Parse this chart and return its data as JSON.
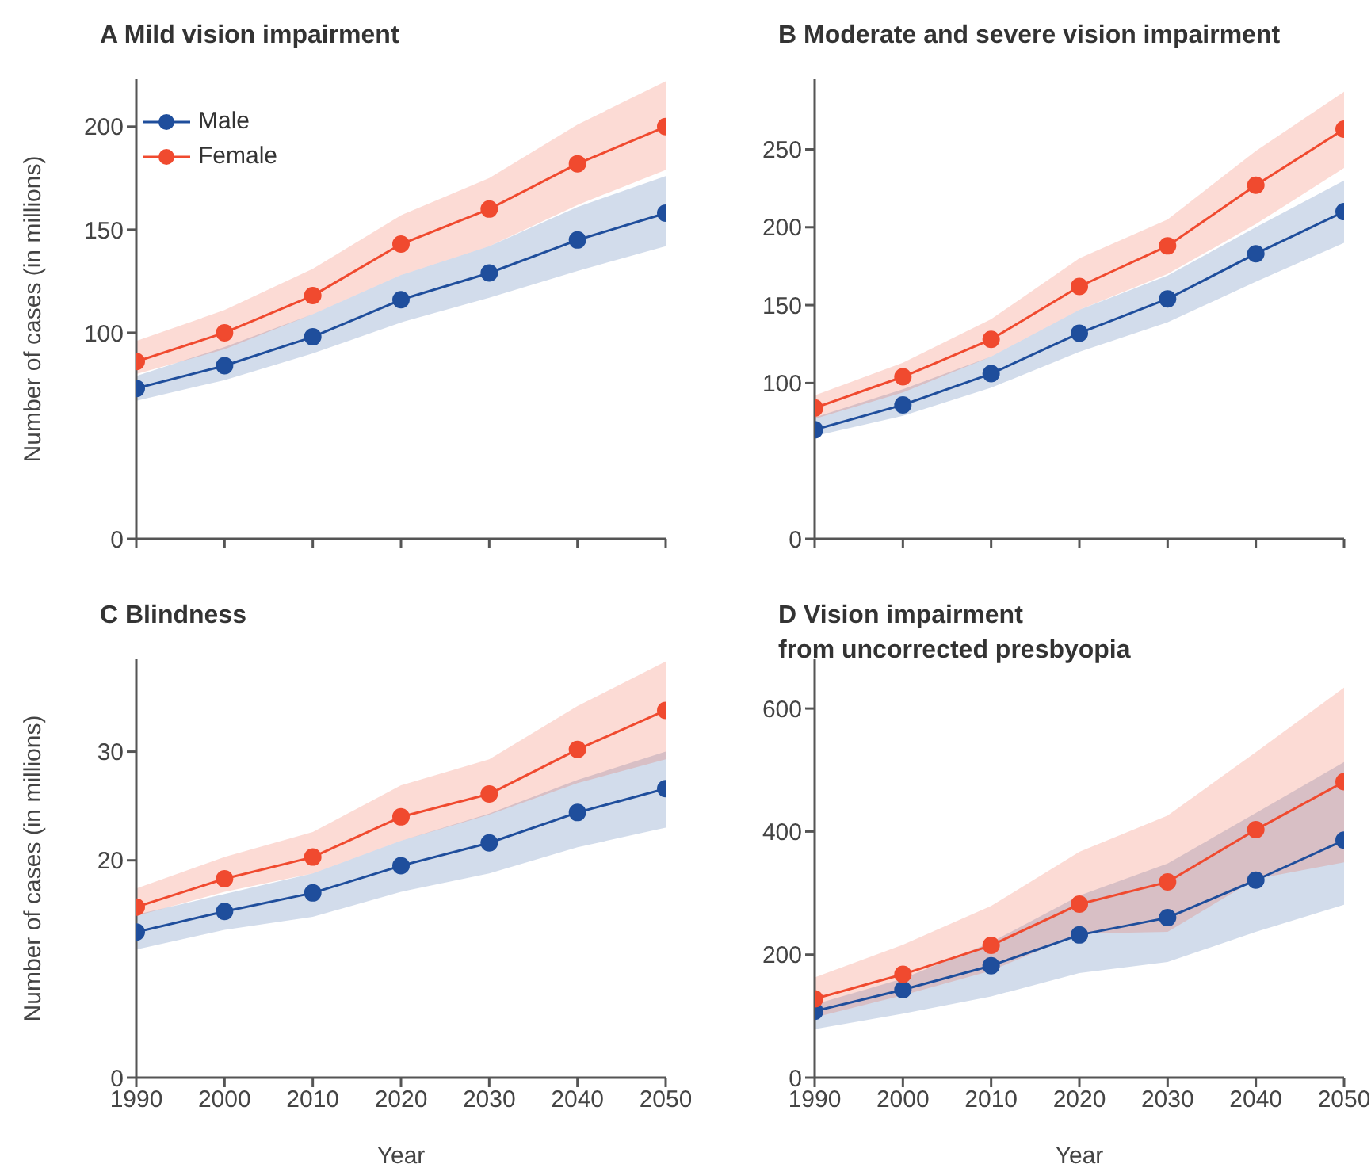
{
  "chart_data": [
    {
      "type": "line",
      "title": "A  Mild vision impairment",
      "ylabel": "Number of cases (in millions)",
      "x": [
        1990,
        2000,
        2010,
        2020,
        2030,
        2040,
        2050
      ],
      "xlim": [
        1990,
        2050
      ],
      "xticks": [
        1990,
        2000,
        2010,
        2020,
        2030,
        2040,
        2050
      ],
      "ylim": [
        0,
        223
      ],
      "yticks": [
        0,
        100,
        150,
        200
      ],
      "tick_labels": "y",
      "marker": "circle",
      "legend": "top left",
      "series": [
        {
          "name": "Male",
          "color": "#1f4e9c",
          "values": [
            73,
            84,
            98,
            116,
            129,
            145,
            158
          ],
          "lower": [
            67,
            77,
            90,
            105,
            117,
            130,
            142
          ],
          "upper": [
            79,
            93,
            109,
            128,
            142,
            161,
            176
          ]
        },
        {
          "name": "Female",
          "color": "#f04a2f",
          "values": [
            86,
            100,
            118,
            143,
            160,
            182,
            200
          ],
          "lower": [
            80,
            92,
            109,
            128,
            142,
            162,
            179
          ],
          "upper": [
            96,
            111,
            131,
            157,
            175,
            201,
            222
          ]
        }
      ]
    },
    {
      "type": "line",
      "title": "B  Moderate and severe vision impairment",
      "x": [
        1990,
        2000,
        2010,
        2020,
        2030,
        2040,
        2050
      ],
      "xlim": [
        1990,
        2050
      ],
      "xticks": [
        1990,
        2000,
        2010,
        2020,
        2030,
        2040,
        2050
      ],
      "ylim": [
        0,
        295
      ],
      "yticks": [
        0,
        100,
        150,
        200,
        250
      ],
      "tick_labels": "y",
      "marker": "circle",
      "series": [
        {
          "color": "#1f4e9c",
          "values": [
            70,
            86,
            106,
            132,
            154,
            183,
            210
          ],
          "lower": [
            66,
            79,
            97,
            120,
            139,
            165,
            190
          ],
          "upper": [
            78,
            96,
            117,
            147,
            169,
            200,
            230
          ]
        },
        {
          "color": "#f04a2f",
          "values": [
            84,
            104,
            128,
            162,
            188,
            227,
            263
          ],
          "lower": [
            77,
            94,
            117,
            147,
            170,
            202,
            238
          ],
          "upper": [
            92,
            113,
            141,
            180,
            205,
            249,
            287
          ]
        }
      ]
    },
    {
      "type": "line",
      "title": "C  Blindness",
      "xlabel": "Year",
      "ylabel": "Number of cases (in millions)",
      "x": [
        1990,
        2000,
        2010,
        2020,
        2030,
        2040,
        2050
      ],
      "xlim": [
        1990,
        2050
      ],
      "xticks": [
        1990,
        2000,
        2010,
        2020,
        2030,
        2040,
        2050
      ],
      "ylim": [
        0,
        38.5
      ],
      "yticks": [
        0,
        20,
        30
      ],
      "marker": "circle",
      "series": [
        {
          "color": "#1f4e9c",
          "values": [
            13.4,
            15.3,
            17,
            19.5,
            21.6,
            24.4,
            26.6
          ],
          "lower": [
            11.8,
            13.6,
            14.8,
            17.1,
            18.8,
            21.2,
            23
          ],
          "upper": [
            15,
            16.9,
            18.8,
            21.8,
            24.3,
            27.4,
            30
          ]
        },
        {
          "color": "#f04a2f",
          "values": [
            15.7,
            18.3,
            20.3,
            24,
            26.1,
            30.2,
            33.8
          ],
          "lower": [
            14.9,
            17.1,
            18.8,
            21.8,
            24.2,
            27.1,
            29.3
          ],
          "upper": [
            17.4,
            20.3,
            22.6,
            26.9,
            29.3,
            34.2,
            38.3
          ]
        }
      ]
    },
    {
      "type": "line",
      "title": "D  Vision impairment\nfrom uncorrected presbyopia",
      "xlabel": "Year",
      "x": [
        1990,
        2000,
        2010,
        2020,
        2030,
        2040,
        2050
      ],
      "xlim": [
        1990,
        2050
      ],
      "xticks": [
        1990,
        2000,
        2010,
        2020,
        2030,
        2040,
        2050
      ],
      "ylim": [
        0,
        680
      ],
      "yticks": [
        0,
        200,
        400,
        600
      ],
      "marker": "circle",
      "series": [
        {
          "color": "#1f4e9c",
          "values": [
            108,
            143,
            182,
            232,
            260,
            321,
            386
          ],
          "lower": [
            79,
            104,
            132,
            170,
            188,
            237,
            281
          ],
          "upper": [
            119,
            161,
            220,
            296,
            348,
            430,
            513
          ]
        },
        {
          "color": "#f04a2f",
          "values": [
            128,
            168,
            215,
            282,
            318,
            403,
            481
          ],
          "lower": [
            98,
            134,
            174,
            234,
            237,
            323,
            350
          ],
          "upper": [
            163,
            216,
            279,
            367,
            426,
            529,
            634
          ]
        }
      ]
    }
  ]
}
